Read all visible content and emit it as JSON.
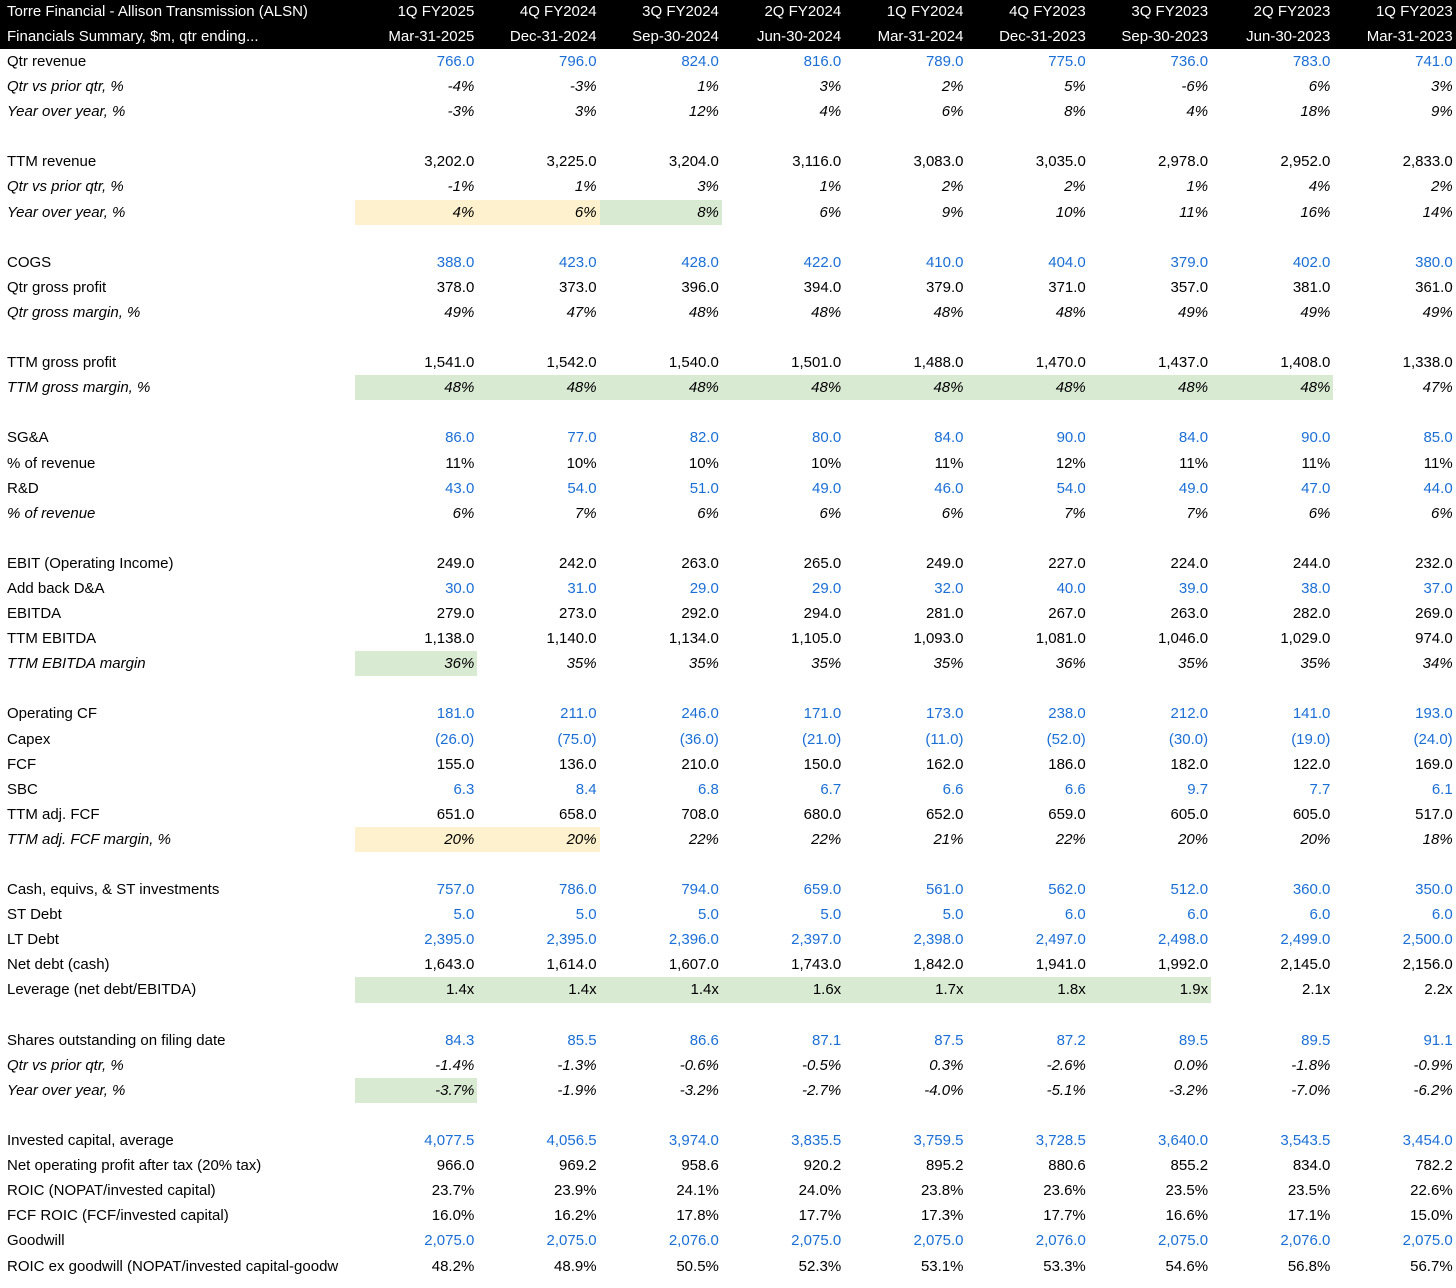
{
  "header": {
    "title": "Torre Financial - Allison Transmission (ALSN)",
    "subtitle": "Financials Summary, $m, qtr ending...",
    "columns": [
      {
        "quarter": "1Q FY2025",
        "date": "Mar-31-2025"
      },
      {
        "quarter": "4Q FY2024",
        "date": "Dec-31-2024"
      },
      {
        "quarter": "3Q FY2024",
        "date": "Sep-30-2024"
      },
      {
        "quarter": "2Q FY2024",
        "date": "Jun-30-2024"
      },
      {
        "quarter": "1Q FY2024",
        "date": "Mar-31-2024"
      },
      {
        "quarter": "4Q FY2023",
        "date": "Dec-31-2023"
      },
      {
        "quarter": "3Q FY2023",
        "date": "Sep-30-2023"
      },
      {
        "quarter": "2Q FY2023",
        "date": "Jun-30-2023"
      },
      {
        "quarter": "1Q FY2023",
        "date": "Mar-31-2023"
      }
    ]
  },
  "sections": [
    [
      {
        "label": "Qtr revenue",
        "color": "#1a6fd6",
        "values": [
          "766.0",
          "796.0",
          "824.0",
          "816.0",
          "789.0",
          "775.0",
          "736.0",
          "783.0",
          "741.0"
        ]
      },
      {
        "label": "Qtr vs prior qtr, %",
        "italic": true,
        "values": [
          "-4%",
          "-3%",
          "1%",
          "3%",
          "2%",
          "5%",
          "-6%",
          "6%",
          "3%"
        ]
      },
      {
        "label": "Year over year, %",
        "italic": true,
        "values": [
          "-3%",
          "3%",
          "12%",
          "4%",
          "6%",
          "8%",
          "4%",
          "18%",
          "9%"
        ]
      }
    ],
    [
      {
        "label": "TTM revenue",
        "values": [
          "3,202.0",
          "3,225.0",
          "3,204.0",
          "3,116.0",
          "3,083.0",
          "3,035.0",
          "2,978.0",
          "2,952.0",
          "2,833.0"
        ]
      },
      {
        "label": "Qtr vs prior qtr, %",
        "italic": true,
        "values": [
          "-1%",
          "1%",
          "3%",
          "1%",
          "2%",
          "2%",
          "1%",
          "4%",
          "2%"
        ]
      },
      {
        "label": "Year over year, %",
        "italic": true,
        "values": [
          "4%",
          "6%",
          "8%",
          "6%",
          "9%",
          "10%",
          "11%",
          "16%",
          "14%"
        ],
        "highlights": [
          {
            "color": "#fdf2cd",
            "columns": [
              0,
              1
            ]
          },
          {
            "color": "#d9ead3",
            "columns": [
              2
            ]
          }
        ]
      }
    ],
    [
      {
        "label": "COGS",
        "color": "#1a6fd6",
        "values": [
          "388.0",
          "423.0",
          "428.0",
          "422.0",
          "410.0",
          "404.0",
          "379.0",
          "402.0",
          "380.0"
        ]
      },
      {
        "label": "Qtr gross profit",
        "values": [
          "378.0",
          "373.0",
          "396.0",
          "394.0",
          "379.0",
          "371.0",
          "357.0",
          "381.0",
          "361.0"
        ]
      },
      {
        "label": "Qtr gross margin, %",
        "italic": true,
        "values": [
          "49%",
          "47%",
          "48%",
          "48%",
          "48%",
          "48%",
          "49%",
          "49%",
          "49%"
        ]
      }
    ],
    [
      {
        "label": "TTM gross profit",
        "values": [
          "1,541.0",
          "1,542.0",
          "1,540.0",
          "1,501.0",
          "1,488.0",
          "1,470.0",
          "1,437.0",
          "1,408.0",
          "1,338.0"
        ]
      },
      {
        "label": "TTM gross margin, %",
        "italic": true,
        "values": [
          "48%",
          "48%",
          "48%",
          "48%",
          "48%",
          "48%",
          "48%",
          "48%",
          "47%"
        ],
        "highlights": [
          {
            "color": "#d9ead3",
            "columns": [
              0,
              1,
              2,
              3,
              4,
              5,
              6,
              7
            ]
          }
        ]
      }
    ],
    [
      {
        "label": "SG&A",
        "color": "#1a6fd6",
        "values": [
          "86.0",
          "77.0",
          "82.0",
          "80.0",
          "84.0",
          "90.0",
          "84.0",
          "90.0",
          "85.0"
        ]
      },
      {
        "label": "% of revenue",
        "values": [
          "11%",
          "10%",
          "10%",
          "10%",
          "11%",
          "12%",
          "11%",
          "11%",
          "11%"
        ]
      },
      {
        "label": "R&D",
        "color": "#1a6fd6",
        "values": [
          "43.0",
          "54.0",
          "51.0",
          "49.0",
          "46.0",
          "54.0",
          "49.0",
          "47.0",
          "44.0"
        ]
      },
      {
        "label": "% of revenue",
        "italic": true,
        "values": [
          "6%",
          "7%",
          "6%",
          "6%",
          "6%",
          "7%",
          "7%",
          "6%",
          "6%"
        ]
      }
    ],
    [
      {
        "label": "EBIT (Operating Income)",
        "values": [
          "249.0",
          "242.0",
          "263.0",
          "265.0",
          "249.0",
          "227.0",
          "224.0",
          "244.0",
          "232.0"
        ]
      },
      {
        "label": "Add back D&A",
        "color": "#1a6fd6",
        "values": [
          "30.0",
          "31.0",
          "29.0",
          "29.0",
          "32.0",
          "40.0",
          "39.0",
          "38.0",
          "37.0"
        ]
      },
      {
        "label": "EBITDA",
        "values": [
          "279.0",
          "273.0",
          "292.0",
          "294.0",
          "281.0",
          "267.0",
          "263.0",
          "282.0",
          "269.0"
        ]
      },
      {
        "label": "TTM EBITDA",
        "values": [
          "1,138.0",
          "1,140.0",
          "1,134.0",
          "1,105.0",
          "1,093.0",
          "1,081.0",
          "1,046.0",
          "1,029.0",
          "974.0"
        ]
      },
      {
        "label": "TTM EBITDA margin",
        "italic": true,
        "values": [
          "36%",
          "35%",
          "35%",
          "35%",
          "35%",
          "36%",
          "35%",
          "35%",
          "34%"
        ],
        "highlights": [
          {
            "color": "#d9ead3",
            "columns": [
              0
            ]
          }
        ]
      }
    ],
    [
      {
        "label": "Operating CF",
        "color": "#1a6fd6",
        "values": [
          "181.0",
          "211.0",
          "246.0",
          "171.0",
          "173.0",
          "238.0",
          "212.0",
          "141.0",
          "193.0"
        ]
      },
      {
        "label": "Capex",
        "color": "#1a6fd6",
        "values": [
          "(26.0)",
          "(75.0)",
          "(36.0)",
          "(21.0)",
          "(11.0)",
          "(52.0)",
          "(30.0)",
          "(19.0)",
          "(24.0)"
        ]
      },
      {
        "label": "FCF",
        "values": [
          "155.0",
          "136.0",
          "210.0",
          "150.0",
          "162.0",
          "186.0",
          "182.0",
          "122.0",
          "169.0"
        ]
      },
      {
        "label": "SBC",
        "color": "#1a6fd6",
        "values": [
          "6.3",
          "8.4",
          "6.8",
          "6.7",
          "6.6",
          "6.6",
          "9.7",
          "7.7",
          "6.1"
        ]
      },
      {
        "label": "TTM adj. FCF",
        "values": [
          "651.0",
          "658.0",
          "708.0",
          "680.0",
          "652.0",
          "659.0",
          "605.0",
          "605.0",
          "517.0"
        ]
      },
      {
        "label": "TTM adj. FCF margin, %",
        "italic": true,
        "values": [
          "20%",
          "20%",
          "22%",
          "22%",
          "21%",
          "22%",
          "20%",
          "20%",
          "18%"
        ],
        "highlights": [
          {
            "color": "#fdf2cd",
            "columns": [
              0,
              1
            ]
          }
        ]
      }
    ],
    [
      {
        "label": "Cash, equivs, & ST investments",
        "color": "#1a6fd6",
        "values": [
          "757.0",
          "786.0",
          "794.0",
          "659.0",
          "561.0",
          "562.0",
          "512.0",
          "360.0",
          "350.0"
        ]
      },
      {
        "label": "ST Debt",
        "color": "#1a6fd6",
        "values": [
          "5.0",
          "5.0",
          "5.0",
          "5.0",
          "5.0",
          "6.0",
          "6.0",
          "6.0",
          "6.0"
        ]
      },
      {
        "label": "LT Debt",
        "color": "#1a6fd6",
        "values": [
          "2,395.0",
          "2,395.0",
          "2,396.0",
          "2,397.0",
          "2,398.0",
          "2,497.0",
          "2,498.0",
          "2,499.0",
          "2,500.0"
        ]
      },
      {
        "label": "Net debt (cash)",
        "values": [
          "1,643.0",
          "1,614.0",
          "1,607.0",
          "1,743.0",
          "1,842.0",
          "1,941.0",
          "1,992.0",
          "2,145.0",
          "2,156.0"
        ]
      },
      {
        "label": "Leverage (net debt/EBITDA)",
        "values": [
          "1.4x",
          "1.4x",
          "1.4x",
          "1.6x",
          "1.7x",
          "1.8x",
          "1.9x",
          "2.1x",
          "2.2x"
        ],
        "highlights": [
          {
            "color": "#d9ead3",
            "columns": [
              0,
              1,
              2,
              3,
              4,
              5,
              6
            ]
          }
        ]
      }
    ],
    [
      {
        "label": "Shares outstanding on filing date",
        "color": "#1a6fd6",
        "values": [
          "84.3",
          "85.5",
          "86.6",
          "87.1",
          "87.5",
          "87.2",
          "89.5",
          "89.5",
          "91.1"
        ]
      },
      {
        "label": "Qtr vs prior qtr, %",
        "italic": true,
        "values": [
          "-1.4%",
          "-1.3%",
          "-0.6%",
          "-0.5%",
          "0.3%",
          "-2.6%",
          "0.0%",
          "-1.8%",
          "-0.9%"
        ]
      },
      {
        "label": "Year over year, %",
        "italic": true,
        "values": [
          "-3.7%",
          "-1.9%",
          "-3.2%",
          "-2.7%",
          "-4.0%",
          "-5.1%",
          "-3.2%",
          "-7.0%",
          "-6.2%"
        ],
        "highlights": [
          {
            "color": "#d9ead3",
            "columns": [
              0
            ]
          }
        ]
      }
    ],
    [
      {
        "label": "Invested capital, average",
        "color": "#1a6fd6",
        "values": [
          "4,077.5",
          "4,056.5",
          "3,974.0",
          "3,835.5",
          "3,759.5",
          "3,728.5",
          "3,640.0",
          "3,543.5",
          "3,454.0"
        ]
      },
      {
        "label": "Net operating profit after tax (20% tax)",
        "values": [
          "966.0",
          "969.2",
          "958.6",
          "920.2",
          "895.2",
          "880.6",
          "855.2",
          "834.0",
          "782.2"
        ]
      },
      {
        "label": "ROIC (NOPAT/invested capital)",
        "values": [
          "23.7%",
          "23.9%",
          "24.1%",
          "24.0%",
          "23.8%",
          "23.6%",
          "23.5%",
          "23.5%",
          "22.6%"
        ]
      },
      {
        "label": "FCF ROIC (FCF/invested capital)",
        "values": [
          "16.0%",
          "16.2%",
          "17.8%",
          "17.7%",
          "17.3%",
          "17.7%",
          "16.6%",
          "17.1%",
          "15.0%"
        ]
      },
      {
        "label": "Goodwill",
        "color": "#1a6fd6",
        "values": [
          "2,075.0",
          "2,075.0",
          "2,076.0",
          "2,075.0",
          "2,075.0",
          "2,076.0",
          "2,075.0",
          "2,076.0",
          "2,075.0"
        ]
      },
      {
        "label": "ROIC ex goodwill (NOPAT/invested capital-goodw",
        "values": [
          "48.2%",
          "48.9%",
          "50.5%",
          "52.3%",
          "53.1%",
          "53.3%",
          "54.6%",
          "56.8%",
          "56.7%"
        ]
      }
    ]
  ]
}
